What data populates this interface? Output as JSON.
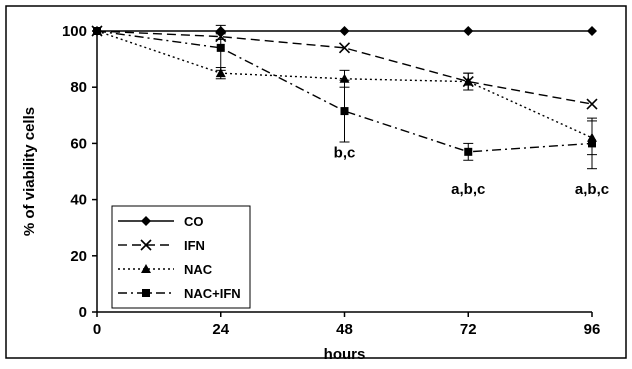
{
  "chart_data": {
    "type": "line",
    "title": "",
    "xlabel": "hours",
    "ylabel": "% of viability cells",
    "x": [
      0,
      24,
      48,
      72,
      96
    ],
    "x_tick_labels": [
      "0",
      "24",
      "48",
      "72",
      "96"
    ],
    "y_tick_labels": [
      "0",
      "20",
      "40",
      "60",
      "80",
      "100"
    ],
    "xlim": [
      0,
      96
    ],
    "ylim": [
      0,
      100
    ],
    "grid": false,
    "legend_position": "bottom-left",
    "series": [
      {
        "name": "CO",
        "values": [
          100,
          100,
          100,
          100,
          100
        ],
        "errors": [
          0,
          0,
          0,
          0,
          0
        ],
        "marker": "diamond",
        "dash": "solid"
      },
      {
        "name": "IFN",
        "values": [
          100,
          98,
          94,
          82,
          74
        ],
        "errors": [
          0,
          1,
          0,
          3,
          0
        ],
        "marker": "x",
        "dash": "long-dash"
      },
      {
        "name": "NAC",
        "values": [
          100,
          85,
          83,
          82,
          62
        ],
        "errors": [
          0,
          2,
          3,
          3,
          6
        ],
        "marker": "triangle",
        "dash": "dotted"
      },
      {
        "name": "NAC+IFN",
        "values": [
          100,
          94,
          71.5,
          57,
          60
        ],
        "errors": [
          0,
          8,
          11,
          3,
          9
        ],
        "marker": "square",
        "dash": "dash-dot"
      }
    ],
    "annotations": [
      {
        "x": 48,
        "y": 55,
        "text": "b,c"
      },
      {
        "x": 72,
        "y": 42,
        "text": "a,b,c"
      },
      {
        "x": 96,
        "y": 42,
        "text": "a,b,c"
      }
    ]
  }
}
